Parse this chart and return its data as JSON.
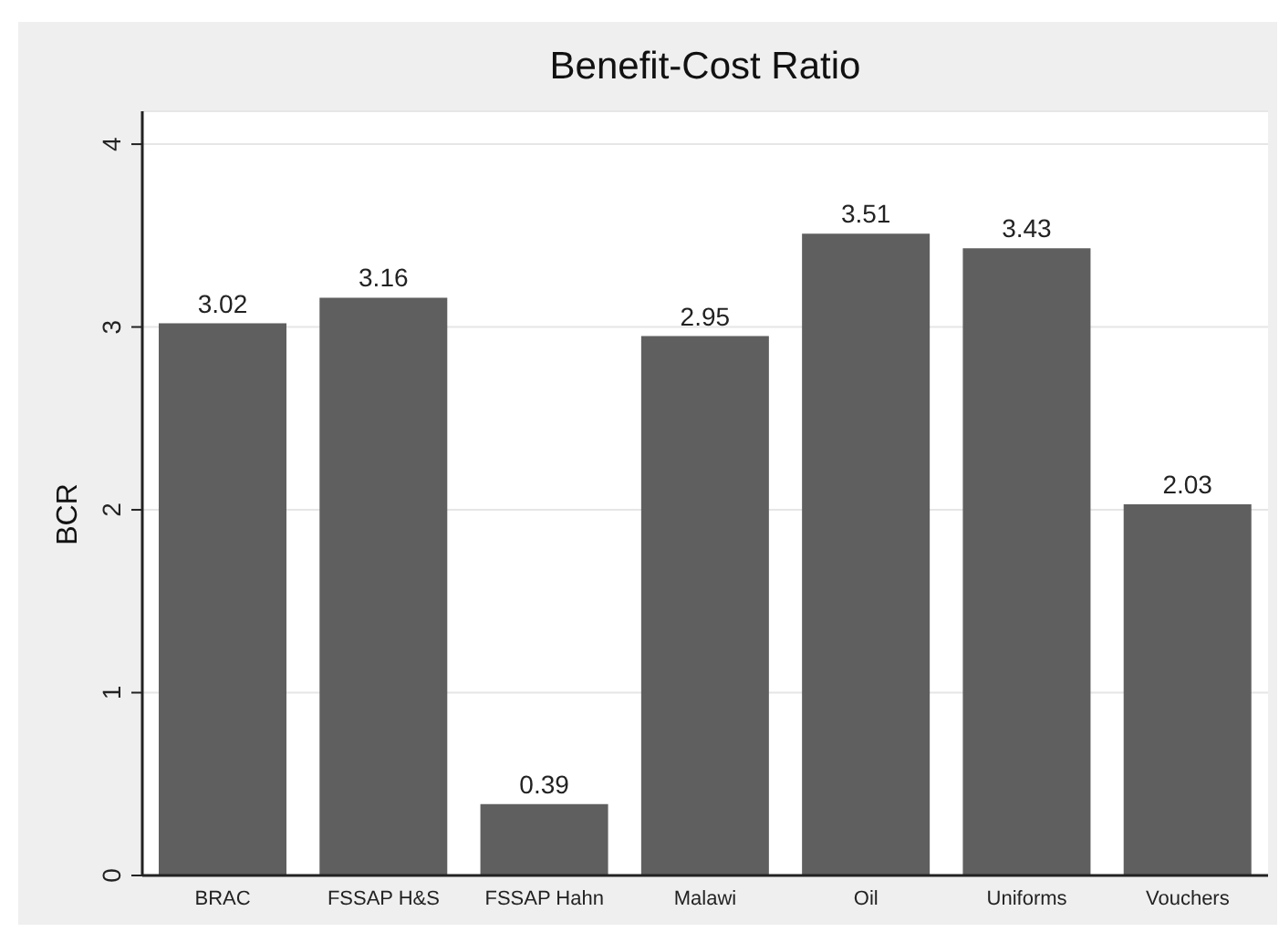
{
  "chart_data": {
    "type": "bar",
    "title": "Benefit-Cost Ratio",
    "ylabel": "BCR",
    "categories": [
      "BRAC",
      "FSSAP H&S",
      "FSSAP Hahn",
      "Malawi",
      "Oil",
      "Uniforms",
      "Vouchers"
    ],
    "values": [
      3.02,
      3.16,
      0.39,
      2.95,
      3.51,
      3.43,
      2.03
    ],
    "color": "#5f5f5f",
    "ylim": [
      0,
      4.18
    ],
    "yticks": [
      0,
      1,
      2,
      3,
      4
    ],
    "grid": "y",
    "data_labels": true
  }
}
